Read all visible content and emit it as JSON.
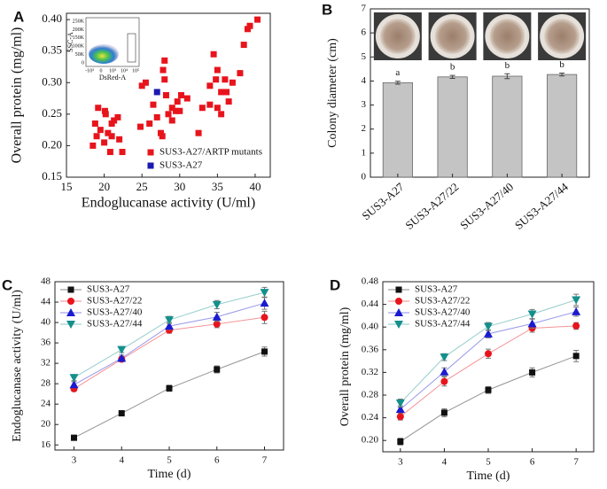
{
  "chart_data": [
    {
      "type": "scatter",
      "panel": "A",
      "x_label": "Endoglucanase activity (U/ml)",
      "y_label": "Overall protein (mg/ml)",
      "xlim": [
        15,
        42
      ],
      "xticks": [
        15,
        20,
        25,
        30,
        35,
        40
      ],
      "ylim": [
        0.15,
        0.41
      ],
      "yticks": [
        0.15,
        {
          "value": 0.2,
          "label": "0.20"
        },
        0.25,
        {
          "value": 0.3,
          "label": "0.30"
        },
        0.35,
        {
          "value": 0.4,
          "label": "0.40"
        }
      ],
      "legend": "lower right",
      "inset": {
        "x_label": "DsRed-A",
        "y_label": "SSC-A",
        "yticks": [
          "250K",
          "200K",
          "150K",
          "100K",
          "50K",
          "0"
        ],
        "xticks": [
          "-10³",
          "0",
          "10³",
          "10⁴",
          "10⁵"
        ]
      },
      "series": [
        {
          "name": "SUS3-A27/ARTP mutants",
          "color": "#e8141c",
          "marker": "square",
          "x": [
            18.5,
            19,
            19.5,
            18.8,
            19.2,
            20,
            20.2,
            20.5,
            20.8,
            21,
            21,
            21.3,
            21.8,
            22,
            22.4,
            20.1,
            24.8,
            25,
            25.5,
            26,
            26.5,
            27,
            27.5,
            27.7,
            27.8,
            28,
            28,
            28.2,
            28.5,
            29,
            29,
            29.5,
            29.7,
            30,
            30.2,
            31,
            32.5,
            33,
            34,
            34,
            34.5,
            34.8,
            35,
            35,
            35.5,
            35.5,
            36,
            36.2,
            36.5,
            37,
            38,
            38.5,
            39,
            39.3,
            40.3
          ],
          "values": [
            0.2,
            0.215,
            0.225,
            0.235,
            0.26,
            0.205,
            0.25,
            0.22,
            0.19,
            0.235,
            0.215,
            0.24,
            0.245,
            0.21,
            0.19,
            0.255,
            0.23,
            0.295,
            0.3,
            0.235,
            0.265,
            0.245,
            0.22,
            0.215,
            0.32,
            0.305,
            0.335,
            0.28,
            0.25,
            0.26,
            0.24,
            0.255,
            0.27,
            0.255,
            0.28,
            0.275,
            0.22,
            0.26,
            0.265,
            0.295,
            0.345,
            0.305,
            0.26,
            0.32,
            0.285,
            0.25,
            0.305,
            0.285,
            0.27,
            0.3,
            0.315,
            0.36,
            0.385,
            0.39,
            0.4
          ]
        },
        {
          "name": "SUS3-A27",
          "color": "#1a1ab0",
          "marker": "square",
          "x": [
            27
          ],
          "values": [
            0.285
          ]
        }
      ]
    },
    {
      "type": "bar",
      "panel": "B",
      "y_label": "Colony diameter (cm)",
      "categories": [
        "SUS3-A27",
        "SUS3-A27/22",
        "SUS3-A27/40",
        "SUS3-A27/44"
      ],
      "values": [
        3.93,
        4.17,
        4.2,
        4.27
      ],
      "errors": [
        0.06,
        0.06,
        0.1,
        0.06
      ],
      "significance": [
        "a",
        "b",
        "b",
        "b"
      ],
      "color": "#c4c4c4",
      "ylim": [
        0,
        7
      ],
      "yticks": [
        0,
        1,
        2,
        3,
        4,
        5,
        6,
        7
      ]
    },
    {
      "type": "line",
      "panel": "C",
      "x_label": "Time (d)",
      "y_label": "Endoglucanase activity (U/ml)",
      "x": [
        3,
        4,
        5,
        6,
        7
      ],
      "xlim": [
        2.6,
        7.4
      ],
      "xticks": [
        3,
        4,
        5,
        6,
        7
      ],
      "ylim": [
        15,
        48
      ],
      "yticks": [
        16,
        20,
        24,
        28,
        32,
        36,
        40,
        44,
        48
      ],
      "legend": "upper left",
      "series": [
        {
          "name": "SUS3-A27",
          "color": "#111111",
          "marker": "square",
          "values": [
            17.4,
            22.2,
            27.1,
            30.8,
            34.3
          ],
          "errors": [
            0.5,
            0.5,
            0.6,
            0.7,
            0.9
          ]
        },
        {
          "name": "SUS3-A27/22",
          "color": "#e8141c",
          "marker": "circle",
          "values": [
            27.0,
            32.8,
            38.5,
            39.7,
            41.0
          ],
          "errors": [
            0.5,
            0.5,
            0.6,
            0.7,
            1.2
          ]
        },
        {
          "name": "SUS3-A27/40",
          "color": "#1a1ad0",
          "marker": "triangle-up",
          "values": [
            27.8,
            33.0,
            39.3,
            41.1,
            43.8
          ],
          "errors": [
            0.6,
            0.6,
            0.7,
            0.9,
            1.2
          ]
        },
        {
          "name": "SUS3-A27/44",
          "color": "#14908c",
          "marker": "triangle-down",
          "values": [
            29.2,
            34.7,
            40.5,
            43.5,
            45.9
          ],
          "errors": [
            0.6,
            0.6,
            0.7,
            0.8,
            1.0
          ]
        }
      ]
    },
    {
      "type": "line",
      "panel": "D",
      "x_label": "Time (d)",
      "y_label": "Overall protein (mg/ml)",
      "x": [
        3,
        4,
        5,
        6,
        7
      ],
      "xlim": [
        2.6,
        7.4
      ],
      "xticks": [
        3,
        4,
        5,
        6,
        7
      ],
      "ylim": [
        0.18,
        0.48
      ],
      "yticks": [
        {
          "value": 0.2,
          "label": "0.20"
        },
        0.24,
        0.28,
        0.32,
        0.36,
        {
          "value": 0.4,
          "label": "0.40"
        },
        0.44,
        0.48
      ],
      "legend": "upper left",
      "series": [
        {
          "name": "SUS3-A27",
          "color": "#111111",
          "marker": "square",
          "values": [
            0.198,
            0.249,
            0.289,
            0.32,
            0.349
          ],
          "errors": [
            0.006,
            0.007,
            0.006,
            0.008,
            0.01
          ]
        },
        {
          "name": "SUS3-A27/22",
          "color": "#e8141c",
          "marker": "circle",
          "values": [
            0.242,
            0.304,
            0.353,
            0.398,
            0.402
          ],
          "errors": [
            0.006,
            0.008,
            0.008,
            0.007,
            0.006
          ]
        },
        {
          "name": "SUS3-A27/40",
          "color": "#1a1ad0",
          "marker": "triangle-up",
          "values": [
            0.255,
            0.321,
            0.388,
            0.406,
            0.427
          ],
          "errors": [
            0.006,
            0.007,
            0.007,
            0.008,
            0.008
          ]
        },
        {
          "name": "SUS3-A27/44",
          "color": "#14908c",
          "marker": "triangle-down",
          "values": [
            0.266,
            0.347,
            0.401,
            0.423,
            0.448
          ],
          "errors": [
            0.007,
            0.006,
            0.007,
            0.008,
            0.01
          ]
        }
      ]
    }
  ]
}
